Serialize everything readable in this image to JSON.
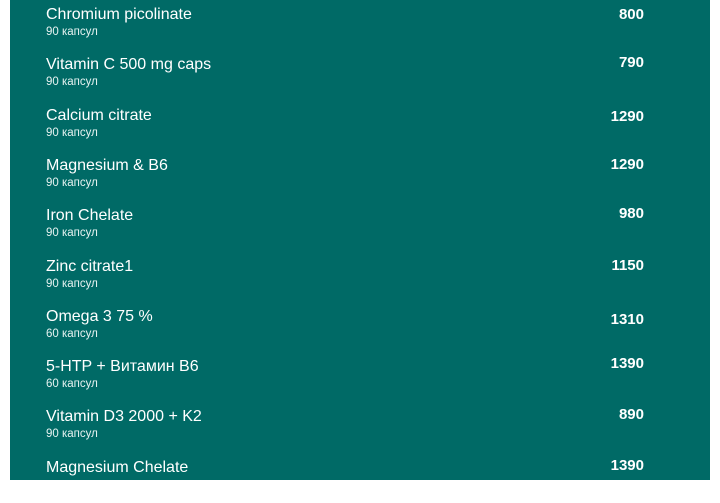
{
  "colors": {
    "panel": "#006a66",
    "text": "#ffffff"
  },
  "products": [
    {
      "name": "Chromium picolinate",
      "sub": "90 капсул",
      "price": "800"
    },
    {
      "name": "Vitamin C 500 mg caps",
      "sub": "90 капсул",
      "price": "790"
    },
    {
      "name": "Calcium citrate",
      "sub": "90 капсул",
      "price": "1290"
    },
    {
      "name": "Magnesium & B6",
      "sub": "90 капсул",
      "price": "1290"
    },
    {
      "name": "Iron Chelate",
      "sub": "90 капсул",
      "price": "980"
    },
    {
      "name": "Zinc citrate1",
      "sub": "90 капсул",
      "price": "1150"
    },
    {
      "name": "Omega 3 75 %",
      "sub": "60 капсул",
      "price": "1310"
    },
    {
      "name": "5-HTP + Витамин B6",
      "sub": "60 капсул",
      "price": "1390"
    },
    {
      "name": "Vitamin D3 2000 + K2",
      "sub": "90 капсул",
      "price": "890"
    },
    {
      "name": "Magnesium Chelate",
      "sub": "",
      "price": "1390"
    }
  ]
}
